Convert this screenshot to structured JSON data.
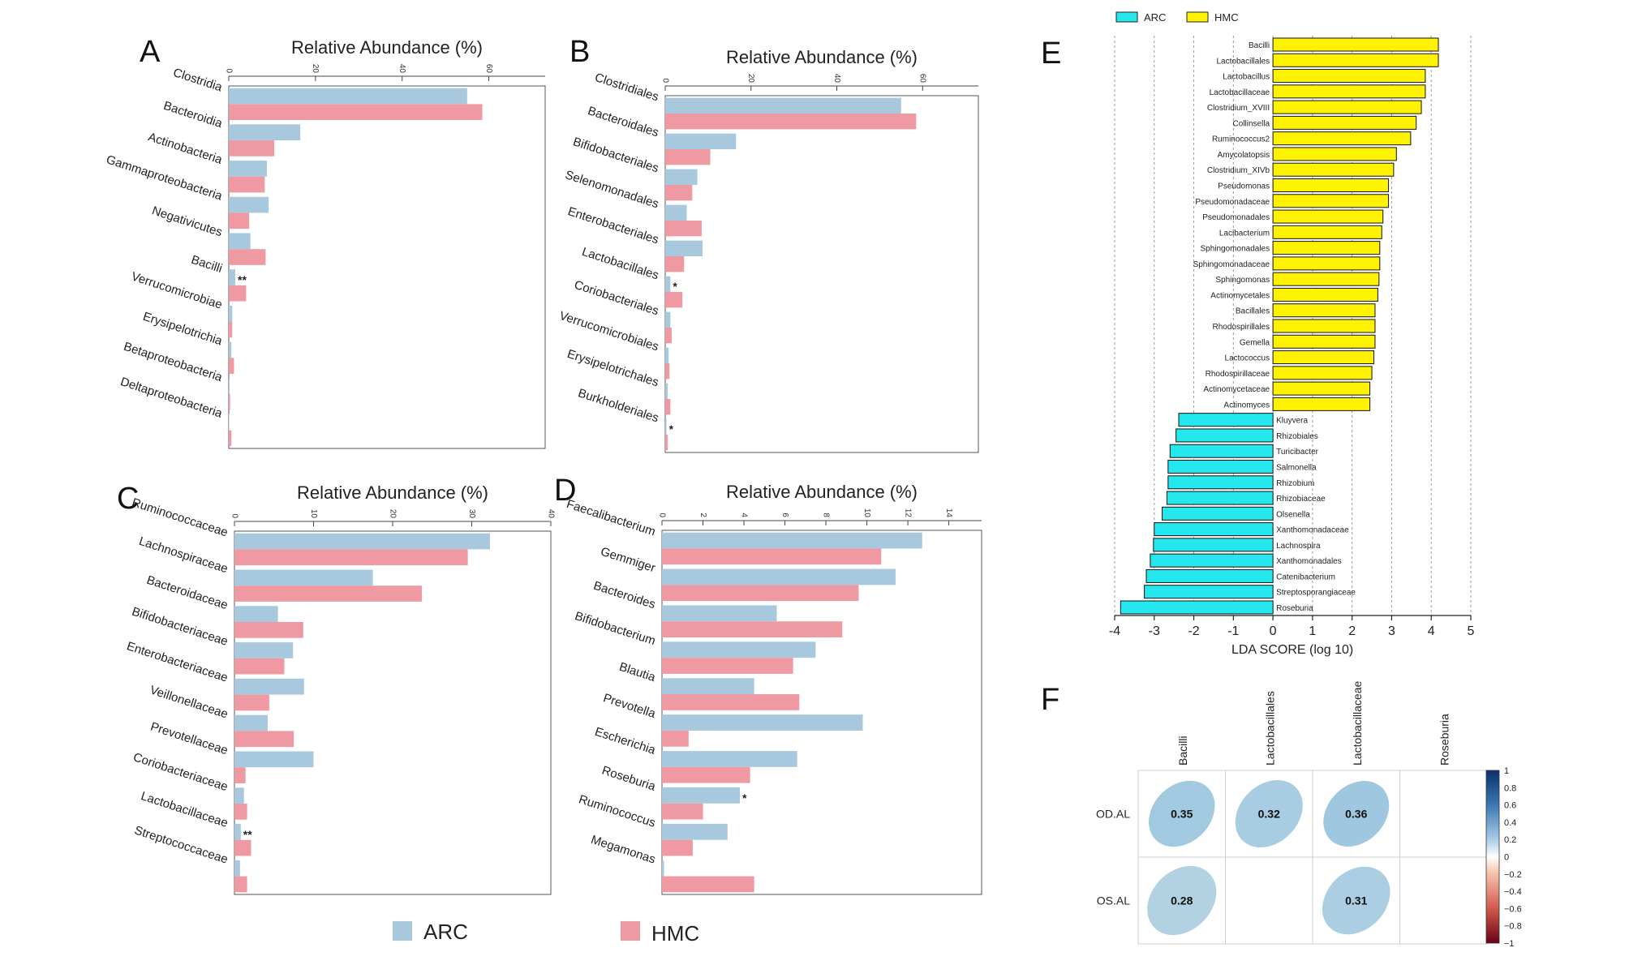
{
  "colors": {
    "arc": "#a8c8de",
    "hmc": "#ef9aa3",
    "lda_arc": "#25e8ee",
    "lda_hmc": "#fff200"
  },
  "legend": {
    "arc": "ARC",
    "hmc": "HMC"
  },
  "chart_data": [
    {
      "panel": "A",
      "type": "bar",
      "orientation": "horizontal",
      "title": "Relative Abundance (%)",
      "xlim": [
        0,
        73
      ],
      "ticks": [
        0,
        20,
        40,
        60
      ],
      "categories": [
        "Clostridia",
        "Bacteroidia",
        "Actinobacteria",
        "Gammaproteobacteria",
        "Negativicutes",
        "Bacilli",
        "Verrucomicrobiae",
        "Erysipelotrichia",
        "Betaproteobacteria",
        "Deltaproteobacteria"
      ],
      "series": [
        {
          "name": "ARC",
          "values": [
            55,
            16.5,
            8.8,
            9.2,
            5.0,
            1.5,
            0.8,
            0.6,
            0.2,
            0.1
          ]
        },
        {
          "name": "HMC",
          "values": [
            58.5,
            10.5,
            8.3,
            4.7,
            8.5,
            4.0,
            0.8,
            1.2,
            0.3,
            0.6
          ]
        }
      ],
      "annotations": [
        "",
        "",
        "",
        "",
        "",
        "**",
        "",
        "",
        "",
        ""
      ]
    },
    {
      "panel": "B",
      "type": "bar",
      "orientation": "horizontal",
      "title": "Relative Abundance (%)",
      "xlim": [
        0,
        73
      ],
      "ticks": [
        0,
        20,
        40,
        60
      ],
      "categories": [
        "Clostridiales",
        "Bacteroidales",
        "Bifidobacteriales",
        "Selenomonadales",
        "Enterobacteriales",
        "Lactobacillales",
        "Coriobacteriales",
        "Verrucomicrobiales",
        "Erysipelotrichales",
        "Burkholderiales"
      ],
      "series": [
        {
          "name": "ARC",
          "values": [
            55,
            16.5,
            7.5,
            5,
            8.7,
            1.2,
            1.2,
            0.8,
            0.6,
            0.3
          ]
        },
        {
          "name": "HMC",
          "values": [
            58.5,
            10.5,
            6.3,
            8.5,
            4.4,
            4.0,
            1.5,
            1.0,
            1.2,
            0.6
          ]
        }
      ],
      "annotations": [
        "",
        "",
        "",
        "",
        "",
        "*",
        "",
        "",
        "",
        "*"
      ]
    },
    {
      "panel": "C",
      "type": "bar",
      "orientation": "horizontal",
      "title": "Relative Abundance (%)",
      "xlim": [
        0,
        40
      ],
      "ticks": [
        0,
        10,
        20,
        30,
        40
      ],
      "categories": [
        "Ruminococcaceae",
        "Lachnospiraceae",
        "Bacteroidaceae",
        "Bifidobacteriaceae",
        "Enterobacteriaceae",
        "Veillonellaceae",
        "Prevotellaceae",
        "Coriobacteriaceae",
        "Lactobacillaceae",
        "Streptococcaceae"
      ],
      "series": [
        {
          "name": "ARC",
          "values": [
            32.3,
            17.5,
            5.5,
            7.4,
            8.8,
            4.2,
            10,
            1.2,
            0.8,
            0.7
          ]
        },
        {
          "name": "HMC",
          "values": [
            29.5,
            23.7,
            8.7,
            6.3,
            4.4,
            7.5,
            1.4,
            1.6,
            2.1,
            1.6
          ]
        }
      ],
      "annotations": [
        "",
        "",
        "",
        "",
        "",
        "",
        "",
        "",
        "**",
        ""
      ]
    },
    {
      "panel": "D",
      "type": "bar",
      "orientation": "horizontal",
      "title": "Relative Abundance (%)",
      "xlim": [
        0,
        15.6
      ],
      "ticks": [
        0,
        2,
        4,
        6,
        8,
        10,
        12,
        14
      ],
      "categories": [
        "Faecalibacterium",
        "Gemmiger",
        "Bacteroides",
        "Bifidobacterium",
        "Blautia",
        "Prevotella",
        "Escherichia",
        "Roseburia",
        "Ruminococcus",
        "Megamonas"
      ],
      "series": [
        {
          "name": "ARC",
          "values": [
            12.7,
            11.4,
            5.6,
            7.5,
            4.5,
            9.8,
            6.6,
            3.8,
            3.2,
            0.1
          ]
        },
        {
          "name": "HMC",
          "values": [
            10.7,
            9.6,
            8.8,
            6.4,
            6.7,
            1.3,
            4.3,
            2.0,
            1.5,
            4.5
          ]
        }
      ],
      "annotations": [
        "",
        "",
        "",
        "",
        "",
        "",
        "",
        "*",
        "",
        ""
      ]
    },
    {
      "panel": "E",
      "type": "bar",
      "orientation": "horizontal",
      "xlabel": "LDA SCORE (log 10)",
      "xlim": [
        -4,
        5
      ],
      "ticks": [
        -4,
        -3,
        -2,
        -1,
        0,
        1,
        2,
        3,
        4,
        5
      ],
      "legend": [
        "ARC",
        "HMC"
      ],
      "categories": [
        "Bacilli",
        "Lactobacillales",
        "Lactobacillus",
        "Lactobacillaceae",
        "Clostridium_XVIII",
        "Collinsella",
        "Ruminococcus2",
        "Amycolatopsis",
        "Clostridium_XIVb",
        "Pseudomonas",
        "Pseudomonadaceae",
        "Pseudomonadales",
        "Lacibacterium",
        "Sphingomonadales",
        "Sphingomonadaceae",
        "Sphingomonas",
        "Actinomycetales",
        "Bacillales",
        "Rhodospirillales",
        "Gemella",
        "Lactococcus",
        "Rhodospirillaceae",
        "Actinomycetaceae",
        "Actinomyces",
        "Kluyvera",
        "Rhizobiales",
        "Turicibacter",
        "Salmonella",
        "Rhizobium",
        "Rhizobiaceae",
        "Olsenella",
        "Xanthomonadaceae",
        "Lachnospira",
        "Xanthomonadales",
        "Catenibacterium",
        "Streptosporangiaceae",
        "Roseburia"
      ],
      "values": [
        4.18,
        4.18,
        3.85,
        3.85,
        3.75,
        3.62,
        3.48,
        3.12,
        3.05,
        2.92,
        2.92,
        2.78,
        2.75,
        2.7,
        2.7,
        2.68,
        2.65,
        2.58,
        2.58,
        2.58,
        2.55,
        2.5,
        2.45,
        2.45,
        -2.38,
        -2.45,
        -2.6,
        -2.65,
        -2.65,
        -2.68,
        -2.8,
        -3.0,
        -3.02,
        -3.1,
        -3.2,
        -3.25,
        -3.85
      ],
      "groups": [
        "HMC",
        "HMC",
        "HMC",
        "HMC",
        "HMC",
        "HMC",
        "HMC",
        "HMC",
        "HMC",
        "HMC",
        "HMC",
        "HMC",
        "HMC",
        "HMC",
        "HMC",
        "HMC",
        "HMC",
        "HMC",
        "HMC",
        "HMC",
        "HMC",
        "HMC",
        "HMC",
        "HMC",
        "ARC",
        "ARC",
        "ARC",
        "ARC",
        "ARC",
        "ARC",
        "ARC",
        "ARC",
        "ARC",
        "ARC",
        "ARC",
        "ARC",
        "ARC"
      ]
    },
    {
      "panel": "F",
      "type": "heatmap",
      "columns": [
        "Bacilli",
        "Lactobacillales",
        "Lactobacillaceae",
        "Roseburia"
      ],
      "rows": [
        "OD.AL",
        "OS.AL"
      ],
      "values": [
        [
          0.35,
          0.32,
          0.36,
          null
        ],
        [
          0.28,
          null,
          0.31,
          null
        ]
      ],
      "colorbar": {
        "range": [
          -1,
          1
        ],
        "ticks": [
          "1",
          "0.8",
          "0.6",
          "0.4",
          "0.2",
          "0",
          "−0.2",
          "−0.4",
          "−0.6",
          "−0.8",
          "−1"
        ]
      }
    }
  ]
}
